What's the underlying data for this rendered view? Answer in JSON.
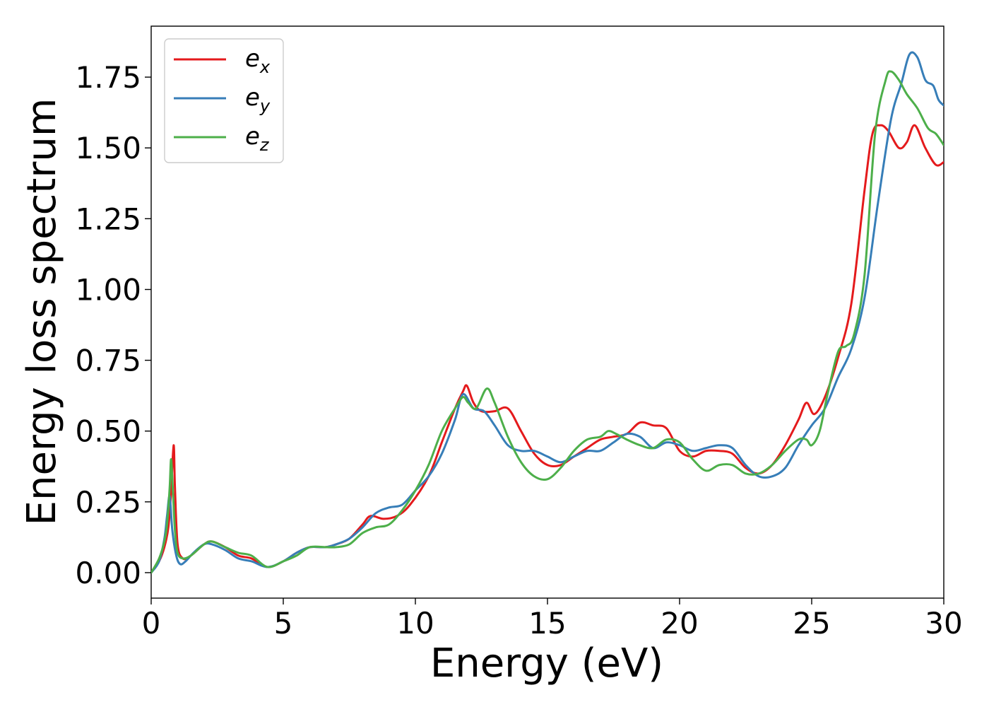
{
  "chart_data": {
    "type": "line",
    "xlabel": "Energy (eV)",
    "ylabel": "Energy loss spectrum",
    "xlim": [
      0,
      30
    ],
    "ylim": [
      -0.09,
      1.93
    ],
    "xticks": [
      0,
      5,
      10,
      15,
      20,
      25,
      30
    ],
    "xtick_labels": [
      "0",
      "5",
      "10",
      "15",
      "20",
      "25",
      "30"
    ],
    "yticks": [
      0,
      0.25,
      0.5,
      0.75,
      1.0,
      1.25,
      1.5,
      1.75
    ],
    "ytick_labels": [
      "0.00",
      "0.25",
      "0.50",
      "0.75",
      "1.00",
      "1.25",
      "1.50",
      "1.75"
    ],
    "grid": false,
    "legend": {
      "position": "top-left",
      "items": [
        {
          "base": "e",
          "sub": "x"
        },
        {
          "base": "e",
          "sub": "y"
        },
        {
          "base": "e",
          "sub": "z"
        }
      ]
    },
    "series": [
      {
        "name": "e_x",
        "color": "#e41a1c",
        "x": [
          0,
          0.3,
          0.5,
          0.65,
          0.75,
          0.85,
          0.9,
          1.0,
          1.2,
          1.5,
          2.0,
          2.3,
          2.8,
          3.3,
          3.8,
          4.4,
          5.0,
          5.5,
          6.0,
          6.6,
          7.0,
          7.5,
          8.0,
          8.3,
          8.8,
          9.3,
          9.8,
          10.5,
          11.0,
          11.5,
          11.8,
          11.95,
          12.2,
          12.5,
          13.0,
          13.5,
          14.0,
          14.5,
          15.0,
          15.5,
          16.0,
          16.5,
          17.0,
          17.5,
          18.0,
          18.5,
          19.0,
          19.5,
          20.0,
          20.5,
          21.0,
          21.5,
          22.0,
          22.5,
          23.0,
          23.5,
          24.0,
          24.5,
          24.8,
          25.1,
          25.5,
          26.0,
          26.5,
          27.0,
          27.3,
          27.6,
          27.9,
          28.3,
          28.6,
          28.9,
          29.3,
          29.7,
          30.0
        ],
        "y": [
          0.0,
          0.04,
          0.09,
          0.16,
          0.28,
          0.45,
          0.3,
          0.1,
          0.05,
          0.06,
          0.1,
          0.11,
          0.09,
          0.06,
          0.05,
          0.02,
          0.04,
          0.07,
          0.09,
          0.09,
          0.1,
          0.12,
          0.17,
          0.2,
          0.19,
          0.2,
          0.24,
          0.34,
          0.46,
          0.58,
          0.64,
          0.66,
          0.6,
          0.57,
          0.57,
          0.58,
          0.5,
          0.42,
          0.38,
          0.38,
          0.41,
          0.44,
          0.47,
          0.48,
          0.49,
          0.53,
          0.52,
          0.51,
          0.43,
          0.41,
          0.43,
          0.43,
          0.42,
          0.37,
          0.35,
          0.38,
          0.45,
          0.54,
          0.6,
          0.56,
          0.62,
          0.76,
          0.95,
          1.35,
          1.55,
          1.58,
          1.56,
          1.5,
          1.52,
          1.58,
          1.5,
          1.44,
          1.45
        ]
      },
      {
        "name": "e_y",
        "color": "#377eb8",
        "x": [
          0,
          0.3,
          0.5,
          0.6,
          0.7,
          0.8,
          0.95,
          1.1,
          1.3,
          1.6,
          2.0,
          2.3,
          2.8,
          3.3,
          3.8,
          4.4,
          5.0,
          5.5,
          6.0,
          6.6,
          7.0,
          7.5,
          8.0,
          8.5,
          9.0,
          9.5,
          10.0,
          10.5,
          11.0,
          11.5,
          11.8,
          12.2,
          12.6,
          13.0,
          13.5,
          14.0,
          14.5,
          15.0,
          15.5,
          16.0,
          16.5,
          17.0,
          17.5,
          18.0,
          18.5,
          19.0,
          19.5,
          20.0,
          20.5,
          21.0,
          21.5,
          22.0,
          22.5,
          23.0,
          23.5,
          24.0,
          24.5,
          25.0,
          25.5,
          26.0,
          26.5,
          27.0,
          27.5,
          28.0,
          28.4,
          28.7,
          29.0,
          29.3,
          29.6,
          29.8,
          30.0
        ],
        "y": [
          0.0,
          0.04,
          0.12,
          0.2,
          0.27,
          0.15,
          0.06,
          0.03,
          0.04,
          0.07,
          0.1,
          0.1,
          0.08,
          0.05,
          0.04,
          0.02,
          0.04,
          0.07,
          0.09,
          0.09,
          0.1,
          0.12,
          0.16,
          0.21,
          0.23,
          0.24,
          0.29,
          0.34,
          0.42,
          0.54,
          0.63,
          0.58,
          0.57,
          0.52,
          0.45,
          0.43,
          0.43,
          0.41,
          0.39,
          0.41,
          0.43,
          0.43,
          0.46,
          0.49,
          0.48,
          0.44,
          0.46,
          0.45,
          0.43,
          0.44,
          0.45,
          0.44,
          0.38,
          0.34,
          0.34,
          0.37,
          0.45,
          0.52,
          0.58,
          0.69,
          0.79,
          0.97,
          1.3,
          1.6,
          1.73,
          1.83,
          1.82,
          1.74,
          1.72,
          1.67,
          1.65
        ]
      },
      {
        "name": "e_z",
        "color": "#4daf4a",
        "x": [
          0,
          0.3,
          0.5,
          0.6,
          0.7,
          0.75,
          0.8,
          0.9,
          1.0,
          1.2,
          1.5,
          2.0,
          2.3,
          2.8,
          3.3,
          3.8,
          4.4,
          5.0,
          5.5,
          6.0,
          6.6,
          7.0,
          7.5,
          8.0,
          8.5,
          9.0,
          9.5,
          10.0,
          10.5,
          11.0,
          11.5,
          11.8,
          12.0,
          12.3,
          12.7,
          13.0,
          13.5,
          14.0,
          14.5,
          15.0,
          15.5,
          16.0,
          16.5,
          17.0,
          17.3,
          17.6,
          18.0,
          18.5,
          19.0,
          19.5,
          20.0,
          20.5,
          21.0,
          21.5,
          22.0,
          22.5,
          23.0,
          23.5,
          24.0,
          24.5,
          24.8,
          25.0,
          25.3,
          25.6,
          26.0,
          26.3,
          26.6,
          27.0,
          27.4,
          27.8,
          28.0,
          28.3,
          28.6,
          29.0,
          29.4,
          29.7,
          30.0
        ],
        "y": [
          0.0,
          0.05,
          0.11,
          0.17,
          0.3,
          0.4,
          0.33,
          0.15,
          0.07,
          0.05,
          0.06,
          0.1,
          0.11,
          0.09,
          0.07,
          0.06,
          0.02,
          0.04,
          0.06,
          0.09,
          0.09,
          0.09,
          0.1,
          0.14,
          0.16,
          0.17,
          0.22,
          0.29,
          0.38,
          0.5,
          0.58,
          0.62,
          0.6,
          0.58,
          0.65,
          0.6,
          0.48,
          0.39,
          0.34,
          0.33,
          0.37,
          0.43,
          0.47,
          0.48,
          0.5,
          0.49,
          0.47,
          0.45,
          0.44,
          0.47,
          0.46,
          0.4,
          0.36,
          0.38,
          0.38,
          0.35,
          0.35,
          0.38,
          0.43,
          0.47,
          0.47,
          0.45,
          0.5,
          0.63,
          0.78,
          0.8,
          0.84,
          1.05,
          1.55,
          1.74,
          1.77,
          1.74,
          1.69,
          1.64,
          1.57,
          1.55,
          1.51
        ]
      }
    ]
  }
}
